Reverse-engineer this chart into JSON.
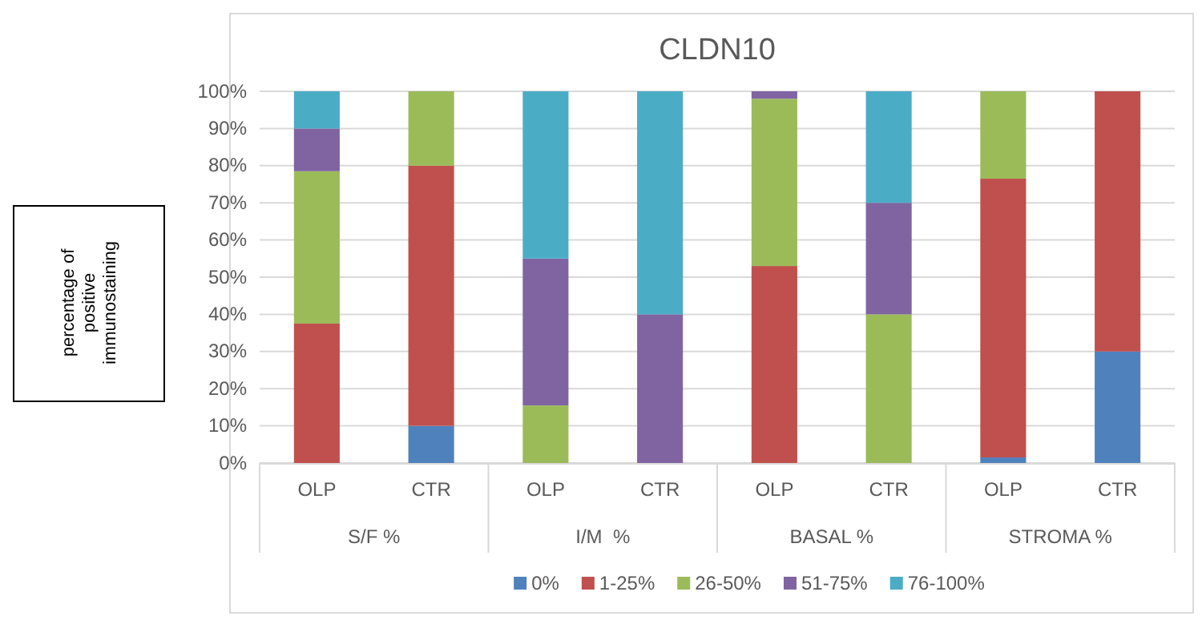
{
  "chart_data": {
    "type": "bar",
    "stacked": true,
    "title": "CLDN10",
    "ylabel": "percentage of positive immunostaining",
    "categories": [
      "OLP",
      "CTR",
      "OLP",
      "CTR",
      "OLP",
      "CTR",
      "OLP",
      "CTR"
    ],
    "annotations": [
      "S/F %",
      "I/M  %",
      "BASAL %",
      "STROMA %"
    ],
    "series": [
      {
        "name": "0%",
        "color": "#4f81bd",
        "values": [
          0,
          10,
          0,
          0,
          0,
          0,
          1.5,
          30
        ]
      },
      {
        "name": "1-25%",
        "color": "#c0504d",
        "values": [
          37.5,
          70,
          0,
          0,
          53,
          0,
          75,
          70
        ]
      },
      {
        "name": "26-50%",
        "color": "#9bbb59",
        "values": [
          41,
          20,
          15.5,
          0,
          45,
          40,
          23.5,
          0
        ]
      },
      {
        "name": "51-75%",
        "color": "#8064a2",
        "values": [
          11.5,
          0,
          39.5,
          40,
          2,
          30,
          0,
          0
        ]
      },
      {
        "name": "76-100%",
        "color": "#4bacc6",
        "values": [
          10,
          0,
          45,
          60,
          0,
          30,
          0,
          0
        ]
      }
    ],
    "ylim": [
      0,
      100
    ],
    "yticks": [
      {
        "value": 0,
        "label": "0%"
      },
      {
        "value": 10,
        "label": "10%"
      },
      {
        "value": 20,
        "label": "20%"
      },
      {
        "value": 30,
        "label": "30%"
      },
      {
        "value": 40,
        "label": "40%"
      },
      {
        "value": 50,
        "label": "50%"
      },
      {
        "value": 60,
        "label": "60%"
      },
      {
        "value": 70,
        "label": "70%"
      },
      {
        "value": 80,
        "label": "80%"
      },
      {
        "value": 90,
        "label": "90%"
      },
      {
        "value": 100,
        "label": "100%"
      }
    ],
    "grid": "y",
    "legend": "bottom"
  }
}
